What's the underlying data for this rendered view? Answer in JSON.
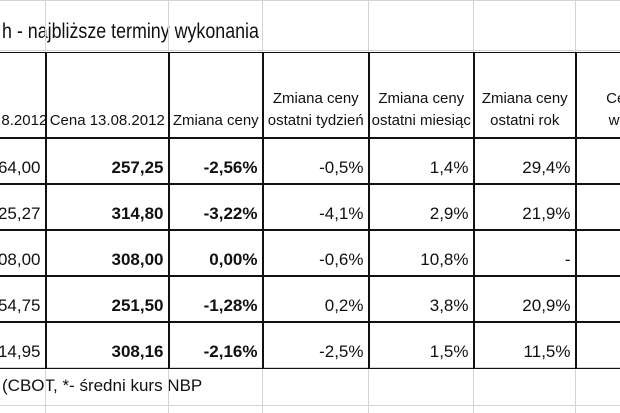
{
  "title": "h - najbliższe terminy wykonania",
  "table": {
    "header": [
      [
        ".8.2012"
      ],
      [
        "Cena 13.08.2012"
      ],
      [
        "Zmiana ceny"
      ],
      [
        "Zmiana ceny",
        "ostatni tydzień"
      ],
      [
        "Zmiana ceny",
        "ostatni miesiąc"
      ],
      [
        "Zmiana ceny",
        "ostatni rok"
      ],
      [
        "Cena t",
        "wyraz"
      ]
    ],
    "rows": [
      [
        "64,00",
        "257,25",
        "-2,56%",
        "-0,5%",
        "1,4%",
        "29,4%"
      ],
      [
        "25,27",
        "314,80",
        "-3,22%",
        "-4,1%",
        "2,9%",
        "21,9%"
      ],
      [
        "08,00",
        "308,00",
        "0,00%",
        "-0,6%",
        "10,8%",
        "-"
      ],
      [
        "54,75",
        "251,50",
        "-1,28%",
        "0,2%",
        "3,8%",
        "20,9%"
      ],
      [
        "14,95",
        "308,16",
        "-2,16%",
        "-2,5%",
        "1,5%",
        "11,5%"
      ]
    ]
  },
  "footer": "(CBOT, *- średni kurs NBP"
}
